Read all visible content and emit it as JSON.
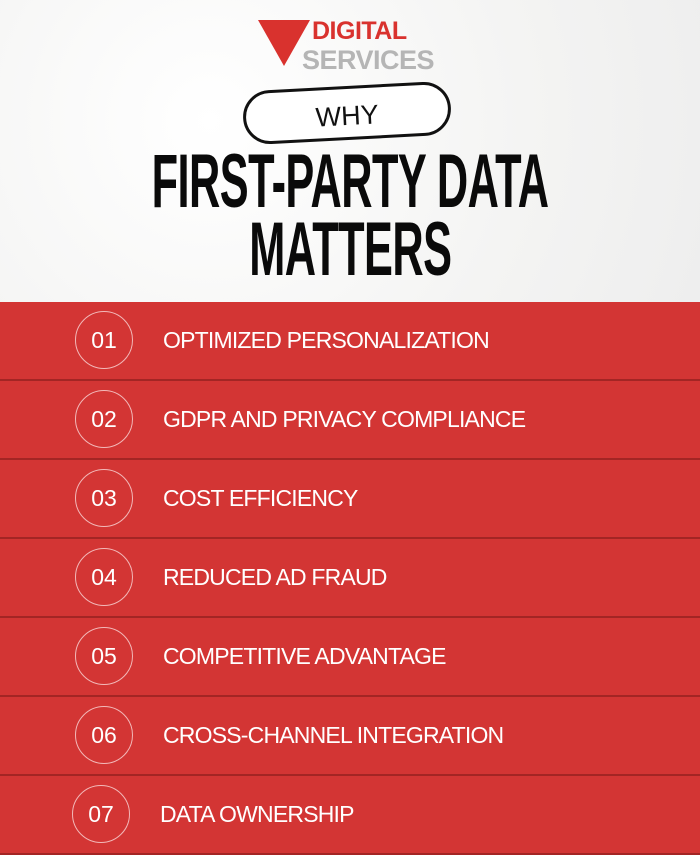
{
  "logo": {
    "line1": "DIGITAL",
    "line2": "SERVICES",
    "colors": {
      "red": "#d9322e",
      "gray": "#b5b5b5"
    }
  },
  "pill": "WHY",
  "title": {
    "line1": "FIRST-PARTY DATA",
    "line2": "MATTERS"
  },
  "accent": "#d33534",
  "items": [
    {
      "num": "01",
      "label": "OPTIMIZED PERSONALIZATION"
    },
    {
      "num": "02",
      "label": "GDPR AND PRIVACY COMPLIANCE"
    },
    {
      "num": "03",
      "label": "COST EFFICIENCY"
    },
    {
      "num": "04",
      "label": "REDUCED AD FRAUD"
    },
    {
      "num": "05",
      "label": "COMPETITIVE ADVANTAGE"
    },
    {
      "num": "06",
      "label": "CROSS-CHANNEL INTEGRATION"
    },
    {
      "num": "07",
      "label": "DATA OWNERSHIP"
    }
  ]
}
